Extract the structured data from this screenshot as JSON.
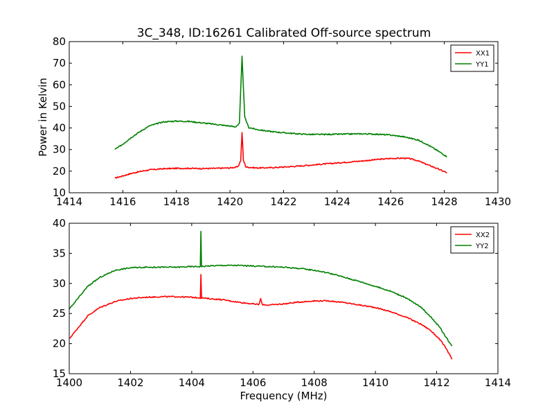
{
  "title": "3C_348, ID:16261 Calibrated Off-source spectrum",
  "chart_data": [
    {
      "type": "line",
      "title": "3C_348, ID:16261 Calibrated Off-source spectrum",
      "xlabel": "",
      "ylabel": "Power in Kelvin",
      "xlim": [
        1414,
        1430
      ],
      "ylim": [
        10,
        80
      ],
      "xticks": [
        1414,
        1416,
        1418,
        1420,
        1422,
        1424,
        1426,
        1428,
        1430
      ],
      "yticks": [
        10,
        20,
        30,
        40,
        50,
        60,
        70,
        80
      ],
      "legend_position": "top-right",
      "grid": false,
      "series": [
        {
          "name": "XX1",
          "color": "#ff0000",
          "x": [
            1415.7,
            1416.0,
            1416.3,
            1416.7,
            1417.0,
            1417.5,
            1418.0,
            1418.5,
            1419.0,
            1419.5,
            1420.0,
            1420.3,
            1420.4,
            1420.45,
            1420.5,
            1420.6,
            1421.0,
            1421.5,
            1422.0,
            1422.5,
            1423.0,
            1423.5,
            1424.0,
            1424.5,
            1425.0,
            1425.5,
            1426.0,
            1426.5,
            1426.7,
            1427.0,
            1427.3,
            1427.6,
            1427.9,
            1428.1
          ],
          "y": [
            16.8,
            17.8,
            18.9,
            20.0,
            20.6,
            21.1,
            21.3,
            21.3,
            21.2,
            21.3,
            21.5,
            22.0,
            25.0,
            38.0,
            25.0,
            21.9,
            21.5,
            21.6,
            21.9,
            22.3,
            22.8,
            23.3,
            23.8,
            24.3,
            24.8,
            25.4,
            25.9,
            26.0,
            25.8,
            24.9,
            23.3,
            21.9,
            20.3,
            19.3
          ]
        },
        {
          "name": "YY1",
          "color": "#008000",
          "x": [
            1415.7,
            1416.0,
            1416.3,
            1416.7,
            1417.0,
            1417.5,
            1418.0,
            1418.5,
            1419.0,
            1419.5,
            1420.0,
            1420.2,
            1420.35,
            1420.45,
            1420.55,
            1420.7,
            1421.0,
            1421.5,
            1422.0,
            1422.5,
            1423.0,
            1423.5,
            1424.0,
            1424.5,
            1425.0,
            1425.5,
            1426.0,
            1426.5,
            1427.0,
            1427.3,
            1427.6,
            1427.9,
            1428.1
          ],
          "y": [
            30.0,
            32.5,
            35.5,
            38.8,
            41.0,
            42.8,
            43.2,
            43.0,
            42.3,
            41.6,
            40.9,
            40.5,
            42.0,
            73.0,
            45.0,
            40.2,
            39.3,
            38.4,
            37.8,
            37.3,
            37.0,
            37.0,
            37.1,
            37.2,
            37.3,
            37.1,
            36.7,
            35.9,
            34.5,
            32.8,
            30.6,
            28.3,
            26.7
          ]
        }
      ]
    },
    {
      "type": "line",
      "title": "",
      "xlabel": "Frequency (MHz)",
      "ylabel": "",
      "xlim": [
        1400,
        1414
      ],
      "ylim": [
        15,
        40
      ],
      "xticks": [
        1400,
        1402,
        1404,
        1406,
        1408,
        1410,
        1412,
        1414
      ],
      "yticks": [
        15,
        20,
        25,
        30,
        35,
        40
      ],
      "legend_position": "top-right",
      "grid": false,
      "series": [
        {
          "name": "XX2",
          "color": "#ff0000",
          "x": [
            1400.0,
            1400.3,
            1400.6,
            1401.0,
            1401.5,
            1402.0,
            1402.5,
            1403.0,
            1403.5,
            1404.0,
            1404.28,
            1404.3,
            1404.32,
            1404.5,
            1405.0,
            1405.5,
            1406.0,
            1406.2,
            1406.25,
            1406.3,
            1406.5,
            1407.0,
            1407.5,
            1408.0,
            1408.5,
            1409.0,
            1409.5,
            1410.0,
            1410.5,
            1411.0,
            1411.5,
            1411.8,
            1412.1,
            1412.3,
            1412.5
          ],
          "y": [
            20.8,
            22.7,
            24.6,
            26.0,
            27.0,
            27.5,
            27.7,
            27.8,
            27.8,
            27.7,
            27.6,
            31.5,
            27.6,
            27.5,
            27.3,
            26.9,
            26.6,
            26.5,
            27.5,
            26.5,
            26.4,
            26.6,
            26.9,
            27.1,
            27.1,
            26.8,
            26.4,
            26.0,
            25.3,
            24.4,
            23.2,
            22.2,
            20.7,
            19.3,
            17.4
          ]
        },
        {
          "name": "YY2",
          "color": "#008000",
          "x": [
            1400.0,
            1400.3,
            1400.6,
            1401.0,
            1401.5,
            1402.0,
            1402.5,
            1403.0,
            1403.5,
            1404.0,
            1404.28,
            1404.3,
            1404.32,
            1404.5,
            1405.0,
            1405.5,
            1406.0,
            1406.5,
            1407.0,
            1407.5,
            1408.0,
            1408.5,
            1409.0,
            1409.5,
            1410.0,
            1410.5,
            1411.0,
            1411.5,
            1411.8,
            1412.1,
            1412.3,
            1412.5
          ],
          "y": [
            25.7,
            27.6,
            29.5,
            31.0,
            32.2,
            32.6,
            32.7,
            32.7,
            32.7,
            32.8,
            32.8,
            38.7,
            32.8,
            32.9,
            33.0,
            33.0,
            32.9,
            32.8,
            32.7,
            32.5,
            32.2,
            31.7,
            31.0,
            30.3,
            29.5,
            28.7,
            27.6,
            26.0,
            24.5,
            22.7,
            21.1,
            19.6
          ]
        }
      ]
    }
  ]
}
